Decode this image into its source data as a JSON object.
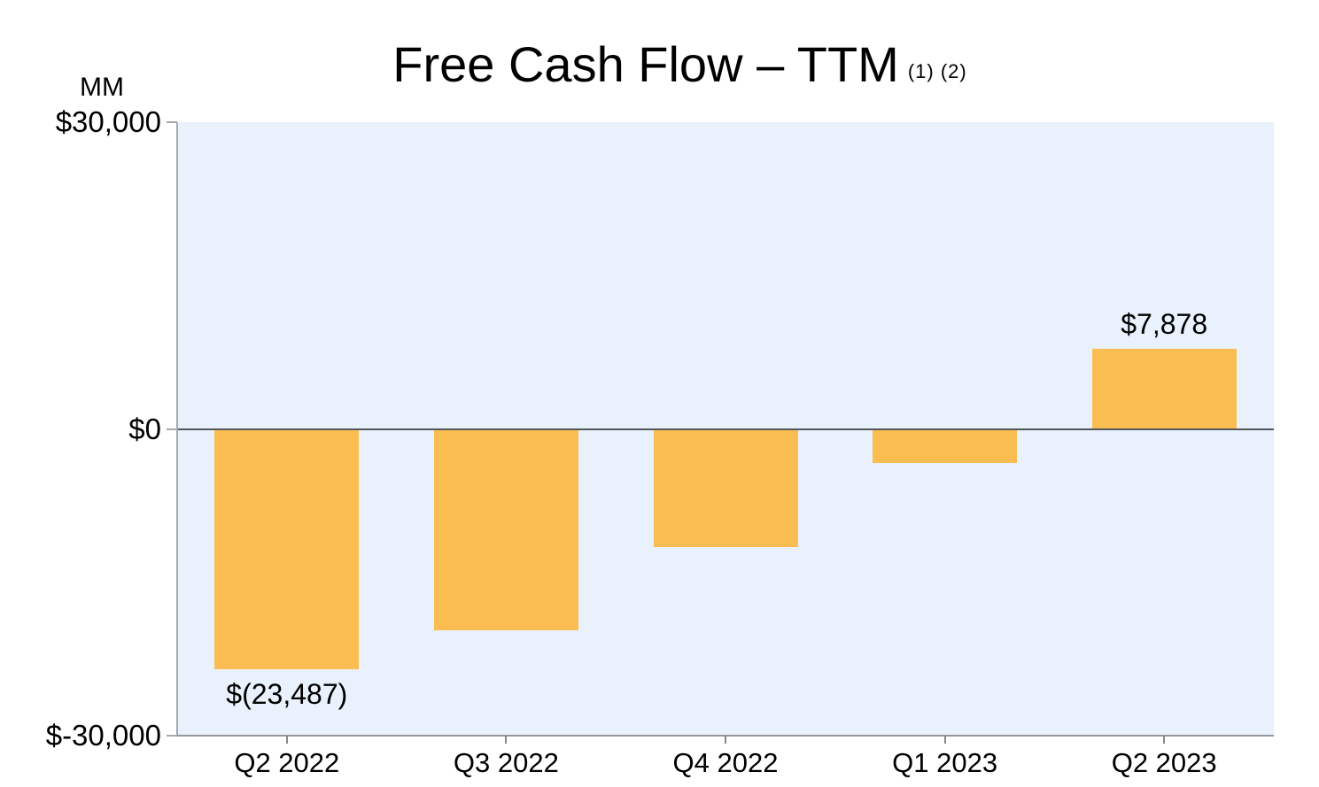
{
  "title": {
    "text": "Free Cash Flow – TTM",
    "footnote_refs": "(1) (2)"
  },
  "y_axis": {
    "unit_label": "MM"
  },
  "chart_data": {
    "type": "bar",
    "title": "Free Cash Flow – TTM (1) (2)",
    "unit": "MM (millions of dollars)",
    "categories": [
      "Q2 2022",
      "Q3 2022",
      "Q4 2022",
      "Q1 2023",
      "Q2 2023"
    ],
    "values": [
      -23487,
      -19686,
      -11569,
      -3319,
      7878
    ],
    "data_labels": [
      "$(23,487)",
      "",
      "",
      "",
      "$7,878"
    ],
    "ylim": [
      -30000,
      30000
    ],
    "y_tick_values": [
      30000,
      0,
      -30000
    ],
    "y_tick_labels": [
      "$30,000",
      "$0",
      "$-30,000"
    ],
    "grid": false,
    "legend": false,
    "colors": {
      "bar": "#FABD51",
      "plot_background": "#E9F1FC",
      "y_axis_line": "#A6A9AD",
      "x_axis_line": "#95979A",
      "tick_mark": "#85888C",
      "zero_line": "#54575C",
      "text": "#000000"
    }
  }
}
